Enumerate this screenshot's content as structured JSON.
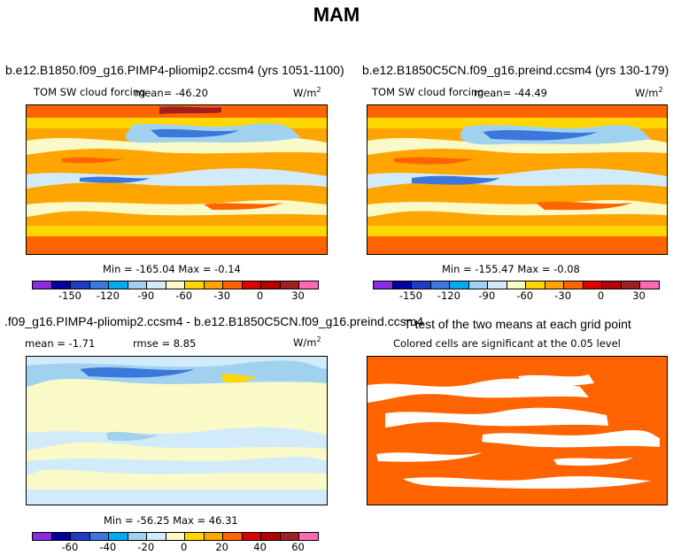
{
  "figure": {
    "title": "MAM"
  },
  "colors": {
    "abs_scale": [
      "#8a2be2",
      "#0000a0",
      "#1e3cc8",
      "#3c78dc",
      "#00aaf0",
      "#a0d2f0",
      "#d2ebfa",
      "#fafac8",
      "#ffd700",
      "#ffa500",
      "#ff6400",
      "#dc0000",
      "#b40000",
      "#a02020",
      "#ff69b4"
    ],
    "diff_scale": [
      "#8a2be2",
      "#0000a0",
      "#1e3cc8",
      "#3c78dc",
      "#00aaf0",
      "#a0d2f0",
      "#d2ebfa",
      "#fafac8",
      "#ffd700",
      "#ffa500",
      "#ff6400",
      "#dc0000",
      "#b40000",
      "#a02020",
      "#ff69b4"
    ],
    "significance": "#ff6400"
  },
  "chart_data": [
    {
      "type": "heatmap",
      "title": "b.e12.B1850.f09_g16.PIMP4-pliomip2.ccsm4 (yrs 1051-1100)",
      "variable_label": "TOM SW cloud forcing",
      "mean_text": "mean= -46.20",
      "units_text": "W/m",
      "units_exp": "2",
      "minmax_text": "Min = -165.04  Max =  -0.14",
      "colorbar_ticks": [
        "-150",
        "-120",
        "-90",
        "-60",
        "-30",
        "0",
        "30"
      ]
    },
    {
      "type": "heatmap",
      "title": "b.e12.B1850C5CN.f09_g16.preind.ccsm4 (yrs 130-179)",
      "variable_label": "TOM SW cloud forcing",
      "mean_text": "mean= -44.49",
      "units_text": "W/m",
      "units_exp": "2",
      "minmax_text": "Min = -155.47  Max =  -0.08",
      "colorbar_ticks": [
        "-150",
        "-120",
        "-90",
        "-60",
        "-30",
        "0",
        "30"
      ]
    },
    {
      "type": "heatmap",
      "title": ".f09_g16.PIMP4-pliomip2.ccsm4 - b.e12.B1850C5CN.f09_g16.preind.ccsm4",
      "mean_text": "mean =  -1.71",
      "rmse_text": "rmse =   8.85",
      "units_text": "W/m",
      "units_exp": "2",
      "minmax_text": "Min = -56.25  Max =  46.31",
      "colorbar_ticks": [
        "-60",
        "-40",
        "-20",
        "0",
        "20",
        "40",
        "60"
      ]
    },
    {
      "type": "heatmap",
      "title": "T-test of the two means at each grid point",
      "subtitle": "Colored cells are significant at the 0.05 level"
    }
  ]
}
